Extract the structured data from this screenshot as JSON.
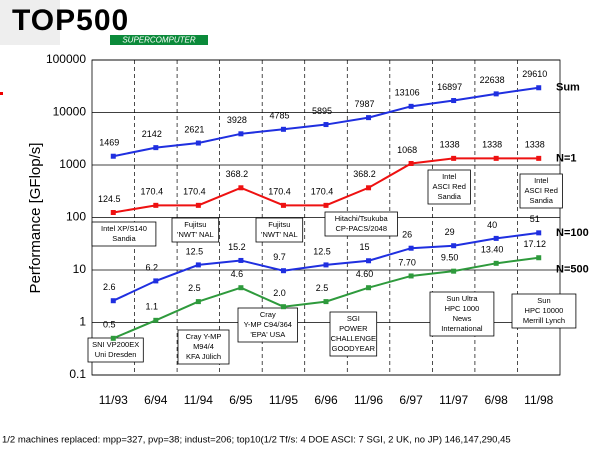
{
  "logo": {
    "title": "TOP500",
    "subtitle": "SUPERCOMPUTER"
  },
  "chart_data": {
    "type": "line",
    "ylabel": "Performance [GFlop/s]",
    "log_scale": true,
    "grid": true,
    "categories": [
      "11/93",
      "6/94",
      "11/94",
      "6/95",
      "11/95",
      "6/96",
      "11/96",
      "6/97",
      "11/97",
      "6/98",
      "11/98"
    ],
    "ylim": [
      0.1,
      100000
    ],
    "yticks": [
      0.1,
      1,
      10,
      100,
      1000,
      10000,
      100000
    ],
    "series": [
      {
        "name": "Sum",
        "color": "#1f2fe0",
        "values": [
          1469,
          2142,
          2621,
          3928,
          4785,
          5895,
          7987,
          13106,
          16897,
          22638,
          29610
        ]
      },
      {
        "name": "N=1",
        "color": "#ee1111",
        "values": [
          124.5,
          170.4,
          170.4,
          368.2,
          170.4,
          170.4,
          368.2,
          1068,
          1338,
          1338,
          1338
        ]
      },
      {
        "name": "N=100",
        "color": "#1f2fe0",
        "values": [
          2.6,
          6.2,
          12.5,
          15.2,
          9.7,
          12.5,
          15,
          26,
          29,
          40,
          51
        ]
      },
      {
        "name": "N=500",
        "color": "#2e9a3c",
        "values": [
          0.5,
          1.1,
          2.5,
          4.6,
          2.0,
          2.5,
          4.6,
          7.7,
          9.5,
          13.4,
          17.12
        ],
        "value_labels": [
          "0.5",
          "1.1",
          "2.5",
          "4.6",
          "2.0",
          "2.5",
          "4.60",
          "7.70",
          "9.50",
          "13.40",
          "17.12"
        ]
      }
    ],
    "annotations": [
      {
        "lines": [
          "Intel XP/S140",
          "Sandia"
        ]
      },
      {
        "lines": [
          "Fujitsu",
          "'NWT' NAL"
        ]
      },
      {
        "lines": [
          "Fujitsu",
          "'NWT' NAL"
        ]
      },
      {
        "lines": [
          "Hitachi/Tsukuba",
          "CP-PACS/2048"
        ]
      },
      {
        "lines": [
          "Intel",
          "ASCI Red",
          "Sandia"
        ]
      },
      {
        "lines": [
          "Intel",
          "ASCI Red",
          "Sandia"
        ]
      },
      {
        "lines": [
          "SNI VP200EX",
          "Uni Dresden"
        ]
      },
      {
        "lines": [
          "Cray Y-MP",
          "M94/4",
          "KFA Jülich"
        ]
      },
      {
        "lines": [
          "Cray",
          "Y-MP C94/364",
          "'EPA' USA"
        ]
      },
      {
        "lines": [
          "SGI",
          "POWER",
          "CHALLENGE",
          "GOODYEAR"
        ]
      },
      {
        "lines": [
          "Sun Ultra",
          "HPC 1000",
          "News",
          "International"
        ]
      },
      {
        "lines": [
          "Sun",
          "HPC 10000",
          "Merrill Lynch"
        ]
      }
    ],
    "footnote": "1/2 machines replaced: mpp=327, pvp=38; indust=206; top10(1/2 Tf/s: 4 DOE ASCI: 7 SGI, 2 UK, no JP) 146,147,290,45"
  }
}
